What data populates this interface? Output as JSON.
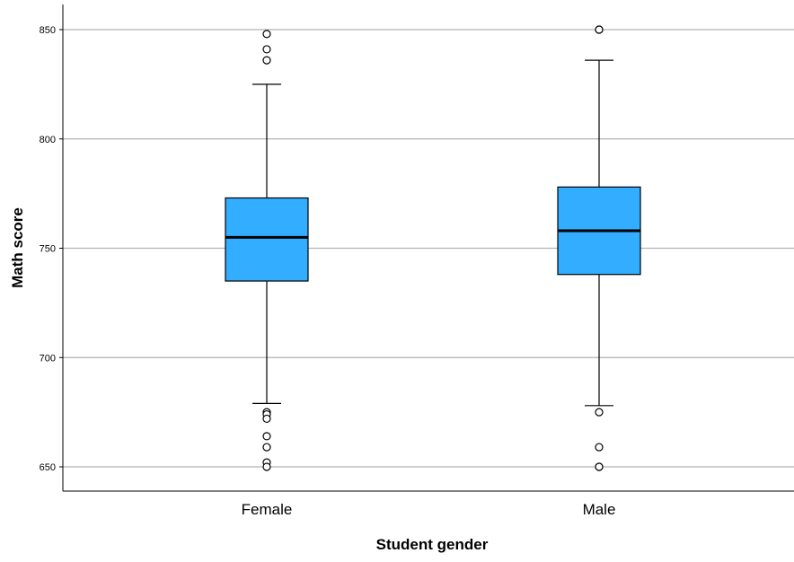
{
  "chart_data": {
    "type": "box",
    "xlabel": "Student gender",
    "ylabel": "Math score",
    "ylim": [
      639,
      858
    ],
    "yticks": [
      650,
      700,
      750,
      800,
      850
    ],
    "grid": true,
    "colors": {
      "box_fill": "#33adff",
      "box_stroke": "#000000",
      "grid": "#b3b3b3"
    },
    "categories": [
      "Female",
      "Male"
    ],
    "boxes": [
      {
        "category": "Female",
        "whisker_low": 679,
        "q1": 735,
        "median": 755,
        "q3": 773,
        "whisker_high": 825,
        "outliers": [
          848,
          841,
          836,
          675,
          674,
          672,
          664,
          659,
          652,
          650
        ]
      },
      {
        "category": "Male",
        "whisker_low": 678,
        "q1": 738,
        "median": 758,
        "q3": 778,
        "whisker_high": 836,
        "outliers": [
          850,
          850,
          675,
          659,
          650,
          650
        ]
      }
    ]
  }
}
